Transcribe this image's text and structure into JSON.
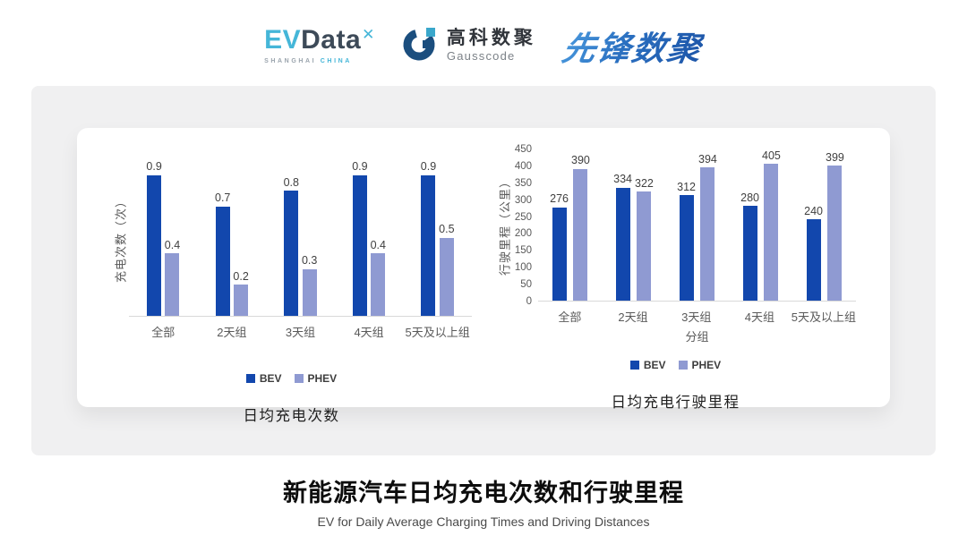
{
  "header": {
    "evdata_logo": {
      "ev": "EV",
      "data": "Data",
      "mark": "✕",
      "sub_left": "SHANGHAI",
      "sub_right": "CHINA"
    },
    "gausscode_logo": {
      "icon": "gausscode-g-mark-icon",
      "cn": "高科数聚",
      "en": "Gausscode"
    },
    "xianfeng_logo": {
      "text": "先锋数聚"
    }
  },
  "colors": {
    "bev": "#1247ad",
    "phev": "#8f9ad2",
    "baseline": "#d9d9d9",
    "panel_bg": "#f0f0f1",
    "card_bg": "#ffffff",
    "tick_text": "#595959",
    "value_text": "#3f3f3f",
    "evdata_cyan": "#45b6d8",
    "evdata_dark": "#3d4a58",
    "gausscode_dark_blue": "#1b4e7e",
    "gausscode_teal": "#3aa7cb",
    "xianfeng_blue": "#2a6fc0"
  },
  "chart_data": [
    {
      "type": "bar",
      "title": "日均充电次数",
      "categories": [
        "全部",
        "2天组",
        "3天组",
        "4天组",
        "5天及以上组"
      ],
      "series": [
        {
          "name": "BEV",
          "values": [
            0.9,
            0.7,
            0.8,
            0.9,
            0.9
          ]
        },
        {
          "name": "PHEV",
          "values": [
            0.4,
            0.2,
            0.3,
            0.4,
            0.5
          ]
        }
      ],
      "ylabel": "充电次数（次）",
      "xlabel": "",
      "ylim": [
        0,
        1.0
      ],
      "yticks": [],
      "grid": false,
      "data_labels": true,
      "legend": [
        "BEV",
        "PHEV"
      ],
      "legend_position": "bottom"
    },
    {
      "type": "bar",
      "title": "日均充电行驶里程",
      "categories": [
        "全部",
        "2天组",
        "3天组",
        "4天组",
        "5天及以上组"
      ],
      "series": [
        {
          "name": "BEV",
          "values": [
            276,
            334,
            312,
            280,
            240
          ]
        },
        {
          "name": "PHEV",
          "values": [
            390,
            322,
            394,
            405,
            399
          ]
        }
      ],
      "ylabel": "行驶里程（公里）",
      "xlabel": "分组",
      "ylim": [
        0,
        450
      ],
      "yticks": [
        0,
        50,
        100,
        150,
        200,
        250,
        300,
        350,
        400,
        450
      ],
      "grid": false,
      "data_labels": true,
      "legend": [
        "BEV",
        "PHEV"
      ],
      "legend_position": "bottom"
    }
  ],
  "footer": {
    "title": "新能源汽车日均充电次数和行驶里程",
    "subtitle": "EV for Daily Average Charging Times and Driving Distances"
  }
}
